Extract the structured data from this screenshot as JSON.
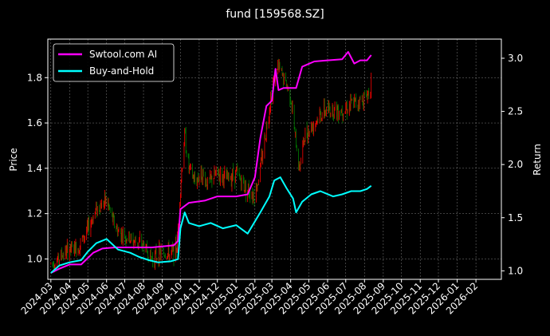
{
  "chart_data": {
    "type": "line",
    "title": "fund [159568.SZ]",
    "xlabel": "",
    "ylabel": "Price",
    "ylabel_right": "Return",
    "x_ticks": [
      "2024-03",
      "2024-04",
      "2024-05",
      "2024-06",
      "2024-07",
      "2024-08",
      "2024-09",
      "2024-10",
      "2024-11",
      "2024-12",
      "2025-01",
      "2025-02",
      "2025-03",
      "2025-04",
      "2025-05",
      "2025-06",
      "2025-07",
      "2025-08",
      "2025-09",
      "2025-10",
      "2025-11",
      "2025-12",
      "2026-01",
      "2026-02"
    ],
    "y_ticks_left": [
      "1.0",
      "1.2",
      "1.4",
      "1.6",
      "1.8"
    ],
    "y_ticks_right": [
      "1.0",
      "1.5",
      "2.0",
      "2.5",
      "3.0"
    ],
    "ylim_left": [
      0.91,
      1.97
    ],
    "ylim_right": [
      0.92,
      3.18
    ],
    "grid": true,
    "legend_position": "top-left",
    "colors": {
      "background": "#000000",
      "up": "#ff0000",
      "down": "#008000",
      "strategy": "#ff00ff",
      "buyhold": "#00ffff",
      "grid": "#808080"
    },
    "price": {
      "dates": [
        "2024-03-01",
        "2024-03-10",
        "2024-03-20",
        "2024-04-01",
        "2024-04-15",
        "2024-05-01",
        "2024-05-15",
        "2024-06-01",
        "2024-06-10",
        "2024-06-20",
        "2024-07-01",
        "2024-07-15",
        "2024-08-01",
        "2024-08-15",
        "2024-09-01",
        "2024-09-15",
        "2024-09-25",
        "2024-10-01",
        "2024-10-08",
        "2024-10-15",
        "2024-10-25",
        "2024-11-05",
        "2024-11-15",
        "2024-12-01",
        "2024-12-15",
        "2025-01-01",
        "2025-01-15",
        "2025-02-01",
        "2025-02-10",
        "2025-02-20",
        "2025-03-01",
        "2025-03-10",
        "2025-03-20",
        "2025-04-01",
        "2025-04-08",
        "2025-04-15",
        "2025-04-25",
        "2025-05-10",
        "2025-05-25",
        "2025-06-10",
        "2025-06-25",
        "2025-07-10",
        "2025-07-25",
        "2025-08-05",
        "2025-08-12"
      ],
      "values": [
        0.98,
        0.99,
        1.02,
        1.04,
        1.05,
        1.13,
        1.22,
        1.26,
        1.18,
        1.12,
        1.1,
        1.08,
        1.06,
        1.0,
        1.03,
        1.02,
        1.05,
        1.32,
        1.55,
        1.4,
        1.34,
        1.38,
        1.33,
        1.38,
        1.35,
        1.38,
        1.32,
        1.28,
        1.4,
        1.58,
        1.75,
        1.85,
        1.8,
        1.72,
        1.55,
        1.4,
        1.55,
        1.6,
        1.65,
        1.66,
        1.66,
        1.68,
        1.7,
        1.72,
        1.78
      ]
    },
    "series": [
      {
        "name": "Swtool.com AI",
        "x": [
          "2024-03-01",
          "2024-03-15",
          "2024-04-01",
          "2024-04-20",
          "2024-05-01",
          "2024-05-10",
          "2024-05-25",
          "2024-06-15",
          "2024-07-15",
          "2024-08-15",
          "2024-09-01",
          "2024-09-20",
          "2024-09-27",
          "2024-10-01",
          "2024-10-15",
          "2024-11-10",
          "2024-12-01",
          "2025-01-01",
          "2025-01-20",
          "2025-02-01",
          "2025-02-10",
          "2025-02-20",
          "2025-03-01",
          "2025-03-07",
          "2025-03-12",
          "2025-03-20",
          "2025-04-10",
          "2025-04-20",
          "2025-05-10",
          "2025-06-01",
          "2025-06-25",
          "2025-07-05",
          "2025-07-15",
          "2025-07-25",
          "2025-08-05",
          "2025-08-12"
        ],
        "values": [
          0.98,
          1.02,
          1.06,
          1.06,
          1.12,
          1.17,
          1.21,
          1.22,
          1.22,
          1.22,
          1.23,
          1.24,
          1.28,
          1.58,
          1.64,
          1.66,
          1.7,
          1.7,
          1.72,
          1.88,
          2.25,
          2.55,
          2.6,
          2.9,
          2.7,
          2.72,
          2.72,
          2.92,
          2.97,
          2.98,
          2.99,
          3.06,
          2.95,
          2.98,
          2.98,
          3.03
        ]
      },
      {
        "name": "Buy-and-Hold",
        "x": [
          "2024-03-01",
          "2024-03-15",
          "2024-04-01",
          "2024-04-20",
          "2024-05-01",
          "2024-05-15",
          "2024-06-01",
          "2024-06-20",
          "2024-07-10",
          "2024-07-25",
          "2024-08-10",
          "2024-08-25",
          "2024-09-15",
          "2024-09-27",
          "2024-10-01",
          "2024-10-08",
          "2024-10-15",
          "2024-11-01",
          "2024-11-20",
          "2024-12-10",
          "2025-01-01",
          "2025-01-20",
          "2025-02-10",
          "2025-02-25",
          "2025-03-05",
          "2025-03-15",
          "2025-03-25",
          "2025-04-05",
          "2025-04-10",
          "2025-04-20",
          "2025-05-05",
          "2025-05-20",
          "2025-06-10",
          "2025-06-25",
          "2025-07-10",
          "2025-07-25",
          "2025-08-05",
          "2025-08-12"
        ],
        "values": [
          0.98,
          1.05,
          1.08,
          1.1,
          1.18,
          1.26,
          1.3,
          1.2,
          1.17,
          1.13,
          1.1,
          1.08,
          1.09,
          1.11,
          1.4,
          1.55,
          1.45,
          1.42,
          1.45,
          1.4,
          1.43,
          1.35,
          1.55,
          1.7,
          1.85,
          1.88,
          1.78,
          1.68,
          1.55,
          1.65,
          1.72,
          1.75,
          1.7,
          1.72,
          1.75,
          1.75,
          1.77,
          1.8
        ]
      }
    ]
  }
}
